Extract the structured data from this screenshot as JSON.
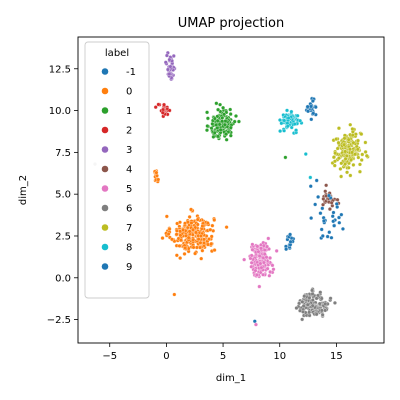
{
  "chart_data": {
    "type": "scatter",
    "title": "UMAP projection",
    "xlabel": "dim_1",
    "ylabel": "dim_2",
    "xlim": [
      -7.8,
      19.2
    ],
    "ylim": [
      -3.9,
      14.4
    ],
    "xticks": [
      -5,
      0,
      5,
      10,
      15
    ],
    "xtick_labels": [
      "−5",
      "0",
      "5",
      "10",
      "15"
    ],
    "yticks": [
      -2.5,
      0.0,
      2.5,
      5.0,
      7.5,
      10.0,
      12.5
    ],
    "ytick_labels": [
      "−2.5",
      "0.0",
      "2.5",
      "5.0",
      "7.5",
      "10.0",
      "12.5"
    ],
    "grid": false,
    "legend": {
      "title": "label",
      "placement": "upper-left",
      "entries": [
        {
          "label": "-1",
          "color": "#1f77b4"
        },
        {
          "label": "0",
          "color": "#ff7f0e"
        },
        {
          "label": "1",
          "color": "#2ca02c"
        },
        {
          "label": "2",
          "color": "#d62728"
        },
        {
          "label": "3",
          "color": "#9467bd"
        },
        {
          "label": "4",
          "color": "#8c564b"
        },
        {
          "label": "5",
          "color": "#e377c2"
        },
        {
          "label": "6",
          "color": "#7f7f7f"
        },
        {
          "label": "7",
          "color": "#bcbd22"
        },
        {
          "label": "8",
          "color": "#17becf"
        },
        {
          "label": "9",
          "color": "#1f77b4"
        }
      ]
    },
    "clusters": [
      {
        "label": "0",
        "color": "#ff7f0e",
        "center": [
          2.3,
          2.6
        ],
        "spread": [
          1.7,
          1.0
        ],
        "n": 260
      },
      {
        "label": "0",
        "color": "#ff7f0e",
        "center": [
          -0.9,
          6.1
        ],
        "spread": [
          0.15,
          0.4
        ],
        "n": 18
      },
      {
        "label": "1",
        "color": "#2ca02c",
        "center": [
          5.0,
          9.2
        ],
        "spread": [
          1.0,
          0.8
        ],
        "n": 150
      },
      {
        "label": "2",
        "color": "#d62728",
        "center": [
          -0.2,
          10.0
        ],
        "spread": [
          0.5,
          0.35
        ],
        "n": 30
      },
      {
        "label": "3",
        "color": "#9467bd",
        "center": [
          0.4,
          12.6
        ],
        "spread": [
          0.35,
          0.7
        ],
        "n": 45
      },
      {
        "label": "4",
        "color": "#8c564b",
        "center": [
          14.3,
          4.7
        ],
        "spread": [
          0.55,
          0.5
        ],
        "n": 28
      },
      {
        "label": "5",
        "color": "#e377c2",
        "center": [
          8.3,
          1.1
        ],
        "spread": [
          0.9,
          0.9
        ],
        "n": 150
      },
      {
        "label": "6",
        "color": "#7f7f7f",
        "center": [
          13.0,
          -1.6
        ],
        "spread": [
          1.2,
          0.65
        ],
        "n": 150
      },
      {
        "label": "7",
        "color": "#bcbd22",
        "center": [
          16.0,
          7.6
        ],
        "spread": [
          1.1,
          1.0
        ],
        "n": 190
      },
      {
        "label": "8",
        "color": "#17becf",
        "center": [
          11.0,
          9.4
        ],
        "spread": [
          0.8,
          0.5
        ],
        "n": 70
      },
      {
        "label": "9",
        "color": "#1f77b4",
        "center": [
          12.8,
          10.1
        ],
        "spread": [
          0.35,
          0.5
        ],
        "n": 25
      },
      {
        "label": "9",
        "color": "#1f77b4",
        "center": [
          10.8,
          2.0
        ],
        "spread": [
          0.4,
          0.8
        ],
        "n": 14
      },
      {
        "label": "-1",
        "color": "#1f77b4",
        "center": [
          14.2,
          3.8
        ],
        "spread": [
          1.2,
          1.8
        ],
        "n": 30
      }
    ],
    "outliers": [
      {
        "x": -6.3,
        "y": 6.8,
        "color": "#cccccc"
      },
      {
        "x": 0.7,
        "y": -1.0,
        "color": "#ff7f0e"
      },
      {
        "x": 7.8,
        "y": -2.6,
        "color": "#1f77b4"
      },
      {
        "x": 7.9,
        "y": -2.8,
        "color": "#e377c2"
      },
      {
        "x": 13.8,
        "y": 2.5,
        "color": "#1f77b4"
      },
      {
        "x": 12.7,
        "y": 6.0,
        "color": "#17becf"
      },
      {
        "x": 12.3,
        "y": 7.4,
        "color": "#17becf"
      },
      {
        "x": 10.5,
        "y": 7.2,
        "color": "#2ca02c"
      }
    ]
  }
}
